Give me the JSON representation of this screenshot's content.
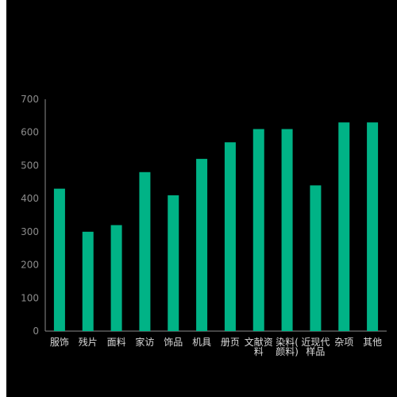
{
  "chart_data": {
    "type": "bar",
    "title": "",
    "xlabel": "",
    "ylabel": "",
    "ylim": [
      0,
      700
    ],
    "yticks": [
      0,
      100,
      200,
      300,
      400,
      500,
      600,
      700
    ],
    "grid": false,
    "categories": [
      "服饰",
      "残片",
      "面料",
      "家访",
      "饰品",
      "机具",
      "册页",
      "文献资料",
      "染料(颜料)",
      "近现代样品",
      "杂项",
      "其他"
    ],
    "category_lines": [
      [
        "服饰"
      ],
      [
        "残片"
      ],
      [
        "面料"
      ],
      [
        "家访"
      ],
      [
        "饰品"
      ],
      [
        "机具"
      ],
      [
        "册页"
      ],
      [
        "文献资",
        "料"
      ],
      [
        "染料(",
        "颜料)"
      ],
      [
        "近现代",
        "样品"
      ],
      [
        "杂项"
      ],
      [
        "其他"
      ]
    ],
    "values": [
      430,
      300,
      320,
      480,
      410,
      520,
      570,
      610,
      610,
      440,
      630,
      630
    ],
    "bar_color": "#00b386",
    "axis_color": "#8c8c8c"
  }
}
